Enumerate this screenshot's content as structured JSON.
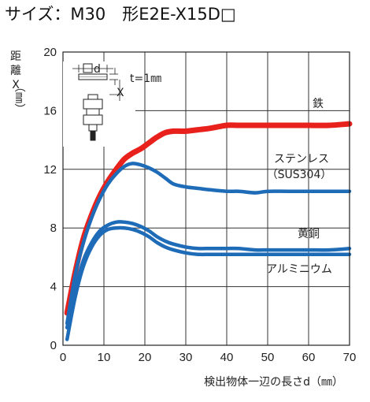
{
  "title": "サイズ：M30　形E2E-X15D□",
  "chart_data": {
    "type": "line",
    "xlabel": "検出物体一辺の長さd（㎜）",
    "ylabel": [
      "距",
      "離",
      "X",
      "（㎜）"
    ],
    "xlim": [
      0,
      70
    ],
    "ylim": [
      0,
      20
    ],
    "xticks": [
      0,
      10,
      20,
      30,
      40,
      50,
      60,
      70
    ],
    "yticks": [
      0,
      4,
      8,
      12,
      16,
      20
    ],
    "grid": true,
    "inset": {
      "t_label": "t=1㎜",
      "d_label": "d",
      "x_label": "X"
    },
    "series": [
      {
        "name": "鉄",
        "color": "#e8211c",
        "x": [
          1,
          3,
          5,
          7,
          9,
          11,
          13,
          15,
          17,
          19,
          21,
          23,
          25,
          27,
          30,
          33,
          36,
          40,
          43,
          47,
          50,
          55,
          60,
          65,
          70
        ],
        "y": [
          2.2,
          5.0,
          7.3,
          8.9,
          10.2,
          11.2,
          12.0,
          12.7,
          13.1,
          13.4,
          13.8,
          14.2,
          14.5,
          14.6,
          14.6,
          14.7,
          14.8,
          15.0,
          15.0,
          15.0,
          15.0,
          15.0,
          15.0,
          15.0,
          15.1
        ]
      },
      {
        "name": "ステンレス（SUS304）",
        "color": "#1e6bb8",
        "x": [
          1,
          3,
          5,
          7,
          9,
          11,
          13,
          15,
          17,
          19,
          21,
          23,
          25,
          27,
          30,
          33,
          36,
          40,
          43,
          47,
          50,
          55,
          60,
          65,
          70
        ],
        "y": [
          1.5,
          4.8,
          7.0,
          8.7,
          10.0,
          11.0,
          11.7,
          12.2,
          12.4,
          12.3,
          12.1,
          11.8,
          11.4,
          11.0,
          10.8,
          10.7,
          10.6,
          10.5,
          10.5,
          10.4,
          10.5,
          10.5,
          10.5,
          10.5,
          10.5
        ]
      },
      {
        "name": "黄銅",
        "color": "#1e6bb8",
        "x": [
          1,
          3,
          5,
          7,
          9,
          11,
          13,
          15,
          17,
          19,
          21,
          23,
          25,
          27,
          30,
          33,
          36,
          40,
          43,
          47,
          50,
          55,
          60,
          65,
          70
        ],
        "y": [
          1.2,
          3.8,
          5.8,
          7.0,
          7.8,
          8.2,
          8.4,
          8.4,
          8.3,
          8.1,
          7.8,
          7.4,
          7.1,
          6.9,
          6.7,
          6.6,
          6.6,
          6.6,
          6.6,
          6.5,
          6.5,
          6.5,
          6.5,
          6.5,
          6.6
        ]
      },
      {
        "name": "アルミニウム",
        "color": "#1e6bb8",
        "x": [
          1,
          3,
          5,
          7,
          9,
          11,
          13,
          15,
          17,
          19,
          21,
          23,
          25,
          27,
          30,
          33,
          36,
          40,
          43,
          47,
          50,
          55,
          60,
          65,
          70
        ],
        "y": [
          0.4,
          3.3,
          5.4,
          6.7,
          7.5,
          7.9,
          8.0,
          8.0,
          7.9,
          7.7,
          7.4,
          7.0,
          6.7,
          6.5,
          6.3,
          6.2,
          6.2,
          6.2,
          6.2,
          6.2,
          6.2,
          6.2,
          6.2,
          6.2,
          6.2
        ]
      }
    ],
    "series_labels": {
      "iron": "鉄",
      "stainless_1": "ステンレス",
      "stainless_2": "（SUS304）",
      "brass": "黄銅",
      "aluminum": "アルミニウム"
    }
  }
}
